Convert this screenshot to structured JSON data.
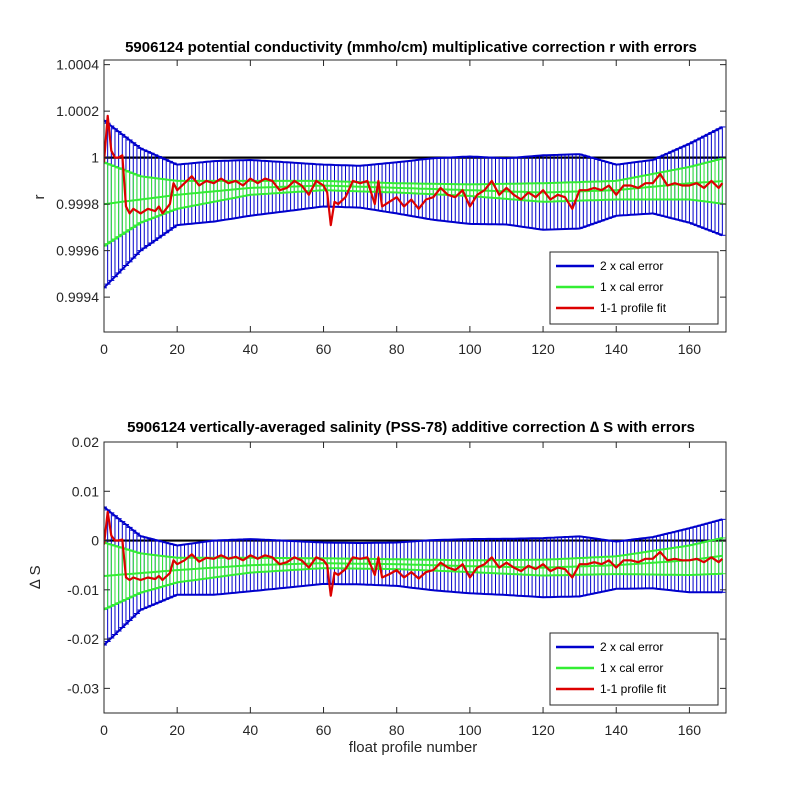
{
  "chart_data": [
    {
      "type": "line",
      "title": "5906124 potential conductivity (mmho/cm) multiplicative correction r with errors",
      "xlabel": "",
      "ylabel": "r",
      "xlim": [
        0,
        170
      ],
      "ylim": [
        0.99925,
        1.00042
      ],
      "xticks": [
        0,
        20,
        40,
        60,
        80,
        100,
        120,
        140,
        160
      ],
      "xtick_labels": [
        "0",
        "20",
        "40",
        "60",
        "80",
        "100",
        "120",
        "140",
        "160"
      ],
      "yticks": [
        0.9994,
        0.9996,
        0.9998,
        1.0,
        1.0002,
        1.0004
      ],
      "ytick_labels": [
        "0.9994",
        "0.9996",
        "0.9998",
        "1",
        "1.0002",
        "1.0004"
      ],
      "reference_line": 1,
      "legend": [
        "2 x cal error",
        "1 x cal error",
        "1-1 profile fit"
      ],
      "legend_position": "bottom-right",
      "colors": {
        "two_x": "#0000cc",
        "one_x": "#33ee33",
        "fit": "#dd0000",
        "ref": "#000000"
      },
      "center": {
        "x": [
          0,
          20,
          40,
          60,
          80,
          100,
          120,
          140,
          160,
          170
        ],
        "y": [
          0.9998,
          0.99984,
          0.99987,
          0.99988,
          0.99987,
          0.99986,
          0.99985,
          0.99986,
          0.99989,
          0.9999
        ]
      },
      "err1": {
        "x": [
          0,
          10,
          20,
          40,
          60,
          80,
          100,
          120,
          140,
          160,
          170
        ],
        "y": [
          0.00018,
          0.0001,
          6e-05,
          3e-05,
          2e-05,
          2e-05,
          2.5e-05,
          4e-05,
          4e-05,
          7e-05,
          0.0001
        ]
      },
      "err2_extra": {
        "x": [
          0,
          10,
          20,
          30,
          40,
          50,
          60,
          70,
          80,
          90,
          100,
          110,
          120,
          130,
          140,
          150,
          160,
          170
        ],
        "y": [
          0.00018,
          0.00012,
          7e-05,
          8.5e-05,
          9e-05,
          8e-05,
          7e-05,
          7e-05,
          9e-05,
          0.00011,
          0.00012,
          0.00011,
          0.00012,
          0.00012,
          7e-05,
          6e-05,
          0.0001,
          0.00014
        ]
      },
      "fit": {
        "x": [
          0,
          1,
          2,
          3,
          4,
          5,
          6,
          7,
          8,
          10,
          12,
          14,
          15,
          16,
          18,
          19,
          20,
          22,
          24,
          26,
          28,
          30,
          32,
          34,
          36,
          38,
          40,
          42,
          44,
          46,
          48,
          50,
          52,
          54,
          56,
          58,
          60,
          61,
          62,
          63,
          64,
          66,
          68,
          70,
          72,
          74,
          75,
          76,
          78,
          80,
          82,
          84,
          86,
          88,
          90,
          92,
          94,
          96,
          98,
          100,
          102,
          104,
          106,
          108,
          110,
          112,
          114,
          116,
          118,
          120,
          122,
          124,
          126,
          128,
          130,
          132,
          134,
          136,
          138,
          140,
          142,
          144,
          146,
          148,
          150,
          152,
          154,
          156,
          158,
          160,
          162,
          164,
          166,
          168,
          169
        ],
        "y": [
          0.99998,
          1.00018,
          1.00003,
          1.0,
          1.0,
          1.00001,
          0.99979,
          0.99976,
          0.99978,
          0.99976,
          0.99978,
          0.99977,
          0.99979,
          0.99976,
          0.9998,
          0.99989,
          0.99986,
          0.99989,
          0.99992,
          0.99988,
          0.9999,
          0.99989,
          0.99991,
          0.99989,
          0.9999,
          0.99988,
          0.99991,
          0.99989,
          0.99991,
          0.9999,
          0.99986,
          0.99987,
          0.9999,
          0.99988,
          0.99984,
          0.9999,
          0.99988,
          0.99985,
          0.99971,
          0.99981,
          0.9998,
          0.99983,
          0.9999,
          0.99989,
          0.9999,
          0.9998,
          0.9999,
          0.99979,
          0.99981,
          0.99983,
          0.99979,
          0.99982,
          0.99978,
          0.99982,
          0.99983,
          0.99987,
          0.99984,
          0.99983,
          0.99986,
          0.99979,
          0.99984,
          0.99986,
          0.9999,
          0.99984,
          0.99987,
          0.99984,
          0.99982,
          0.99985,
          0.99983,
          0.99986,
          0.99982,
          0.99984,
          0.99983,
          0.99978,
          0.99986,
          0.99986,
          0.99987,
          0.99986,
          0.99988,
          0.99984,
          0.99988,
          0.99988,
          0.99987,
          0.99989,
          0.99989,
          0.99993,
          0.99988,
          0.99989,
          0.99988,
          0.99988,
          0.99989,
          0.99987,
          0.9999,
          0.99987,
          0.99989
        ]
      }
    },
    {
      "type": "line",
      "title": "5906124 vertically-averaged salinity (PSS-78) additive correction ∆ S with errors",
      "xlabel": "float profile number",
      "ylabel": "∆ S",
      "xlim": [
        0,
        170
      ],
      "ylim": [
        -0.035,
        0.02
      ],
      "xticks": [
        0,
        20,
        40,
        60,
        80,
        100,
        120,
        140,
        160
      ],
      "xtick_labels": [
        "0",
        "20",
        "40",
        "60",
        "80",
        "100",
        "120",
        "140",
        "160"
      ],
      "yticks": [
        -0.03,
        -0.02,
        -0.01,
        0,
        0.01,
        0.02
      ],
      "ytick_labels": [
        "-0.03",
        "-0.02",
        "-0.01",
        "0",
        "0.01",
        "0.02"
      ],
      "reference_line": 0,
      "legend": [
        "2 x cal error",
        "1 x cal error",
        "1-1 profile fit"
      ],
      "legend_position": "bottom-right",
      "colors": {
        "two_x": "#0000cc",
        "one_x": "#33ee33",
        "fit": "#dd0000",
        "ref": "#000000"
      },
      "center": {
        "x": [
          0,
          20,
          40,
          60,
          80,
          100,
          120,
          140,
          160,
          170
        ],
        "y": [
          -0.0072,
          -0.006,
          -0.005,
          -0.0046,
          -0.0048,
          -0.0052,
          -0.0055,
          -0.005,
          -0.004,
          -0.003
        ]
      },
      "err1": {
        "x": [
          0,
          10,
          20,
          40,
          60,
          80,
          100,
          120,
          140,
          160,
          170
        ],
        "y": [
          0.0068,
          0.004,
          0.0025,
          0.0015,
          0.001,
          0.001,
          0.0012,
          0.0016,
          0.0018,
          0.003,
          0.0037
        ]
      },
      "err2_extra": {
        "x": [
          0,
          10,
          20,
          30,
          40,
          50,
          60,
          70,
          80,
          90,
          100,
          110,
          120,
          130,
          140,
          150,
          160,
          170
        ],
        "y": [
          0.0072,
          0.0035,
          0.0025,
          0.0035,
          0.0038,
          0.0035,
          0.0032,
          0.0032,
          0.0034,
          0.004,
          0.0043,
          0.0043,
          0.0044,
          0.0044,
          0.003,
          0.0028,
          0.0035,
          0.0038
        ]
      },
      "fit": {
        "x": [
          0,
          1,
          2,
          3,
          4,
          5,
          6,
          7,
          8,
          10,
          12,
          14,
          15,
          16,
          18,
          19,
          20,
          22,
          24,
          26,
          28,
          30,
          32,
          34,
          36,
          38,
          40,
          42,
          44,
          46,
          48,
          50,
          52,
          54,
          56,
          58,
          60,
          61,
          62,
          63,
          64,
          66,
          68,
          70,
          72,
          74,
          75,
          76,
          78,
          80,
          82,
          84,
          86,
          88,
          90,
          92,
          94,
          96,
          98,
          100,
          102,
          104,
          106,
          108,
          110,
          112,
          114,
          116,
          118,
          120,
          122,
          124,
          126,
          128,
          130,
          132,
          134,
          136,
          138,
          140,
          142,
          144,
          146,
          148,
          150,
          152,
          154,
          156,
          158,
          160,
          162,
          164,
          166,
          168,
          169
        ],
        "y": [
          -0.0008,
          0.0058,
          0.001,
          0.0,
          0.0,
          0.0002,
          -0.0075,
          -0.008,
          -0.0075,
          -0.008,
          -0.0075,
          -0.0078,
          -0.0072,
          -0.008,
          -0.0066,
          -0.004,
          -0.0048,
          -0.004,
          -0.0028,
          -0.0043,
          -0.0035,
          -0.0037,
          -0.003,
          -0.0037,
          -0.0033,
          -0.004,
          -0.003,
          -0.0037,
          -0.003,
          -0.0034,
          -0.0048,
          -0.0044,
          -0.0034,
          -0.004,
          -0.0055,
          -0.0034,
          -0.004,
          -0.005,
          -0.0112,
          -0.0065,
          -0.007,
          -0.0058,
          -0.0034,
          -0.0037,
          -0.0034,
          -0.007,
          -0.0034,
          -0.0075,
          -0.0068,
          -0.006,
          -0.0075,
          -0.0064,
          -0.0077,
          -0.0064,
          -0.006,
          -0.0045,
          -0.0055,
          -0.006,
          -0.0048,
          -0.0075,
          -0.0055,
          -0.0048,
          -0.0034,
          -0.0055,
          -0.0045,
          -0.0055,
          -0.0062,
          -0.0051,
          -0.0058,
          -0.0048,
          -0.0062,
          -0.0055,
          -0.0058,
          -0.0075,
          -0.0048,
          -0.0048,
          -0.0044,
          -0.0048,
          -0.004,
          -0.0055,
          -0.004,
          -0.004,
          -0.0044,
          -0.0037,
          -0.0037,
          -0.0023,
          -0.004,
          -0.0037,
          -0.004,
          -0.004,
          -0.0037,
          -0.0044,
          -0.0034,
          -0.0044,
          -0.0037
        ]
      }
    }
  ]
}
